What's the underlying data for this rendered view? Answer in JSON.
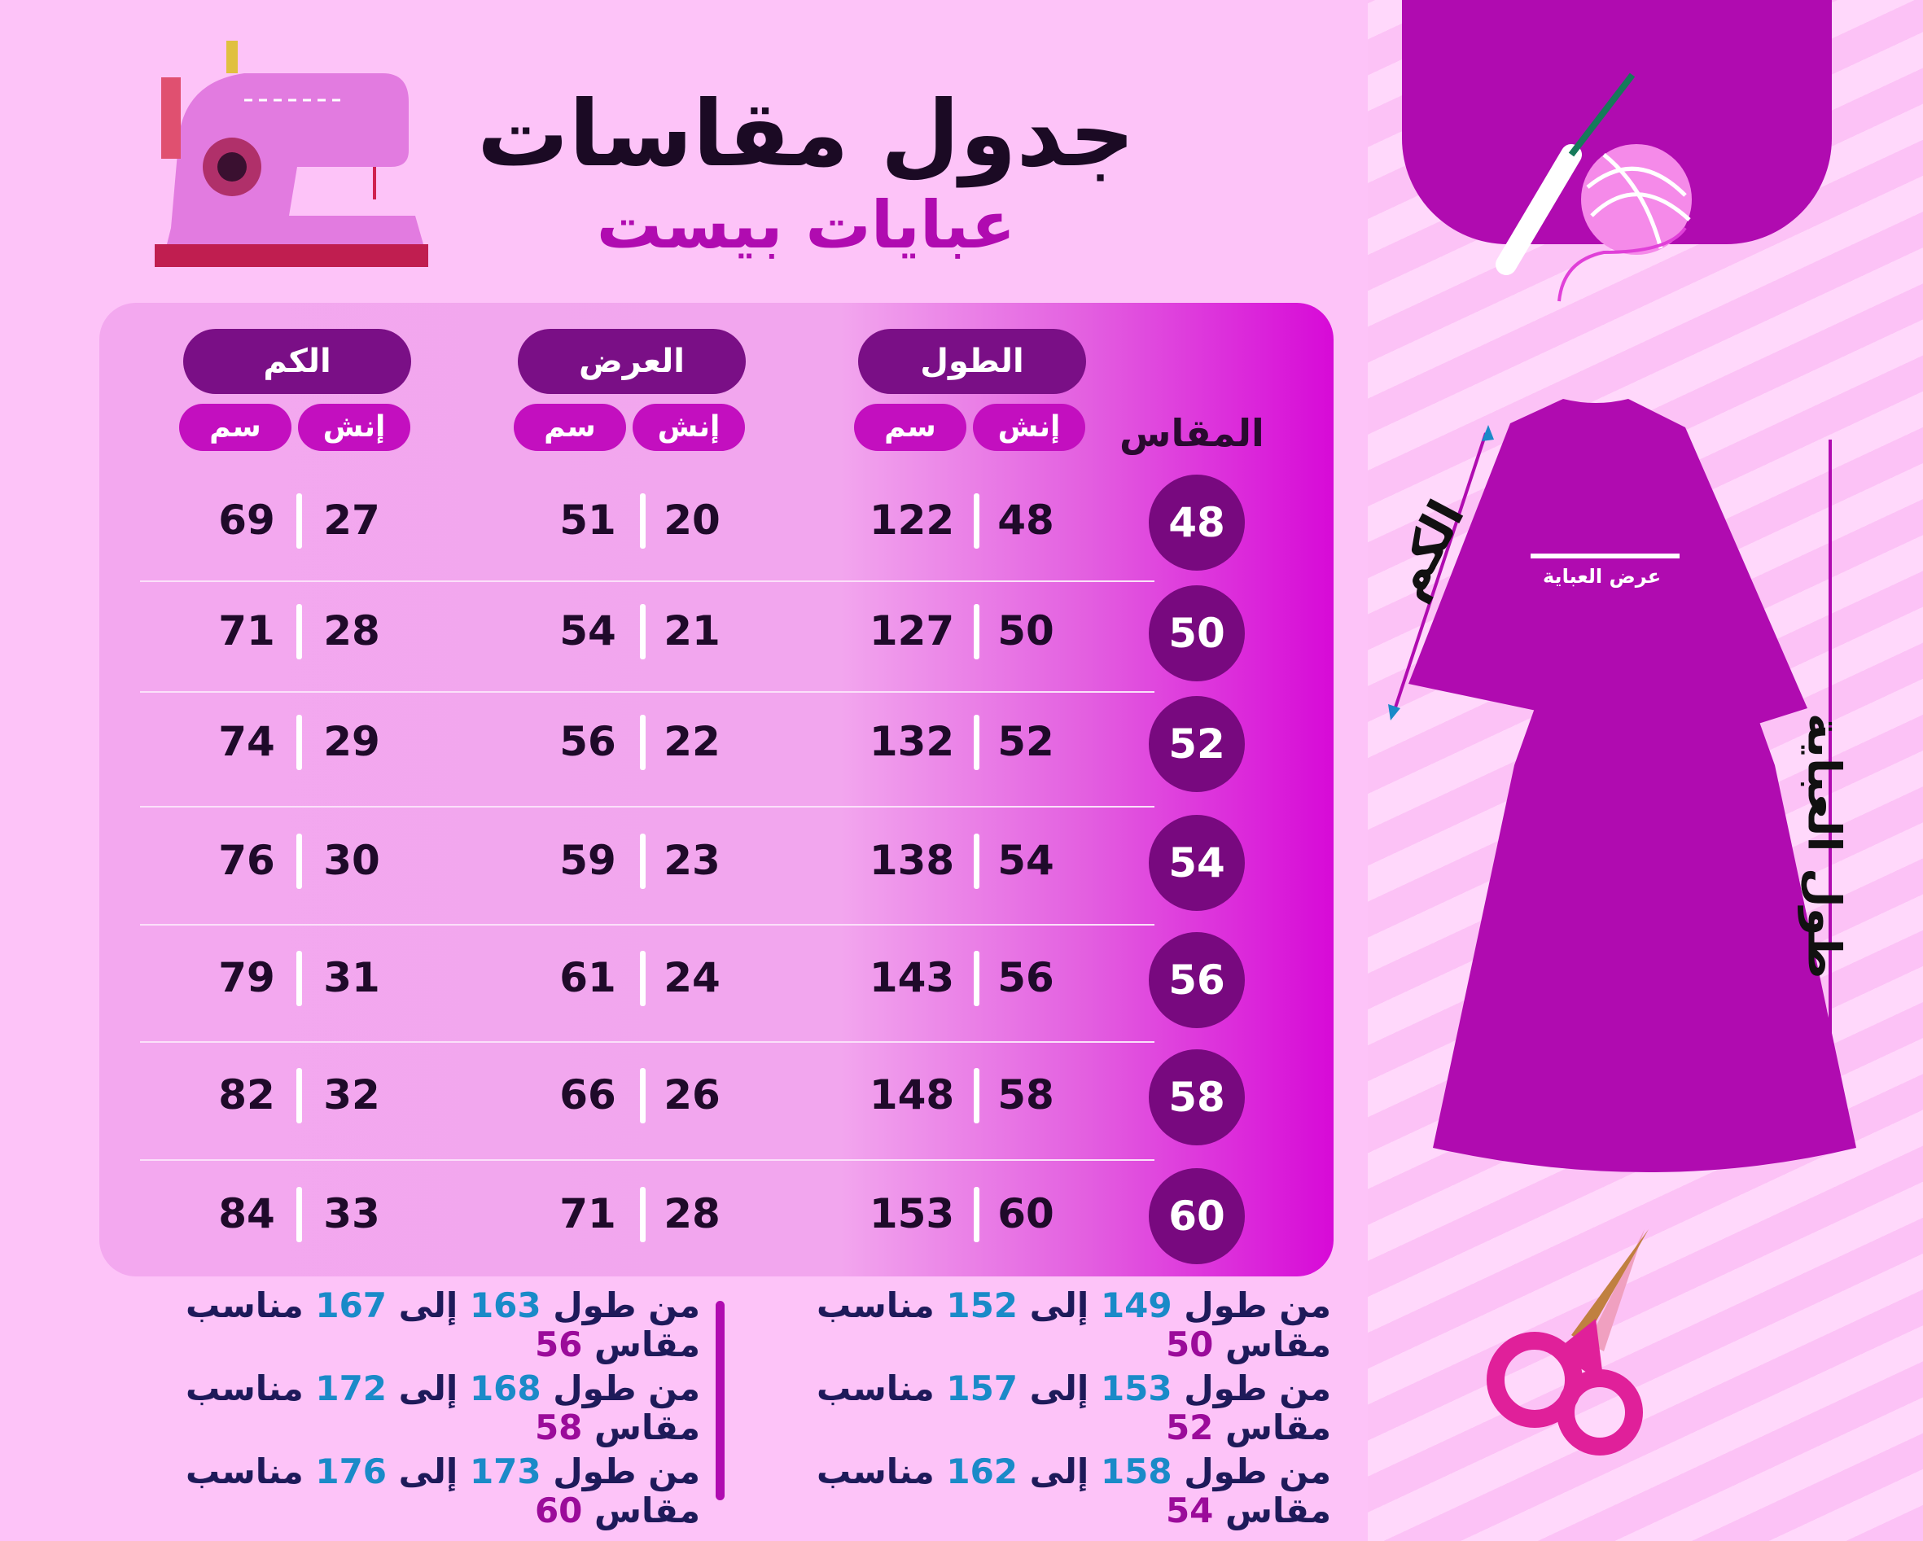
{
  "title": "جدول مقاسات",
  "subtitle": "عبايات بيست",
  "table": {
    "size_header": "المقاس",
    "groups": [
      {
        "label": "الطول",
        "inch": "إنش",
        "cm": "سم"
      },
      {
        "label": "العرض",
        "inch": "إنش",
        "cm": "سم"
      },
      {
        "label": "الكم",
        "inch": "إنش",
        "cm": "سم"
      }
    ],
    "rows": [
      {
        "size": "48",
        "length_in": "48",
        "length_cm": "122",
        "width_in": "20",
        "width_cm": "51",
        "sleeve_in": "27",
        "sleeve_cm": "69"
      },
      {
        "size": "50",
        "length_in": "50",
        "length_cm": "127",
        "width_in": "21",
        "width_cm": "54",
        "sleeve_in": "28",
        "sleeve_cm": "71"
      },
      {
        "size": "52",
        "length_in": "52",
        "length_cm": "132",
        "width_in": "22",
        "width_cm": "56",
        "sleeve_in": "29",
        "sleeve_cm": "74"
      },
      {
        "size": "54",
        "length_in": "54",
        "length_cm": "138",
        "width_in": "23",
        "width_cm": "59",
        "sleeve_in": "30",
        "sleeve_cm": "76"
      },
      {
        "size": "56",
        "length_in": "56",
        "length_cm": "143",
        "width_in": "24",
        "width_cm": "61",
        "sleeve_in": "31",
        "sleeve_cm": "79"
      },
      {
        "size": "58",
        "length_in": "58",
        "length_cm": "148",
        "width_in": "26",
        "width_cm": "66",
        "sleeve_in": "32",
        "sleeve_cm": "82"
      },
      {
        "size": "60",
        "length_in": "60",
        "length_cm": "153",
        "width_in": "28",
        "width_cm": "71",
        "sleeve_in": "33",
        "sleeve_cm": "84"
      }
    ]
  },
  "notes": {
    "from": "من طول",
    "to": "إلى",
    "fits": "مناسب مقاس",
    "items": [
      {
        "min": "149",
        "max": "152",
        "size": "50"
      },
      {
        "min": "153",
        "max": "157",
        "size": "52"
      },
      {
        "min": "158",
        "max": "162",
        "size": "54"
      },
      {
        "min": "163",
        "max": "167",
        "size": "56"
      },
      {
        "min": "168",
        "max": "172",
        "size": "58"
      },
      {
        "min": "173",
        "max": "176",
        "size": "60"
      }
    ]
  },
  "diagram": {
    "sleeve_label": "الكم",
    "width_label": "عرض العباية",
    "length_label": "طول العباية"
  },
  "colors": {
    "dark_purple": "#7a0f86",
    "magenta": "#b00bb0",
    "blue": "#1a8ac8",
    "background": "#fdc3f8"
  }
}
